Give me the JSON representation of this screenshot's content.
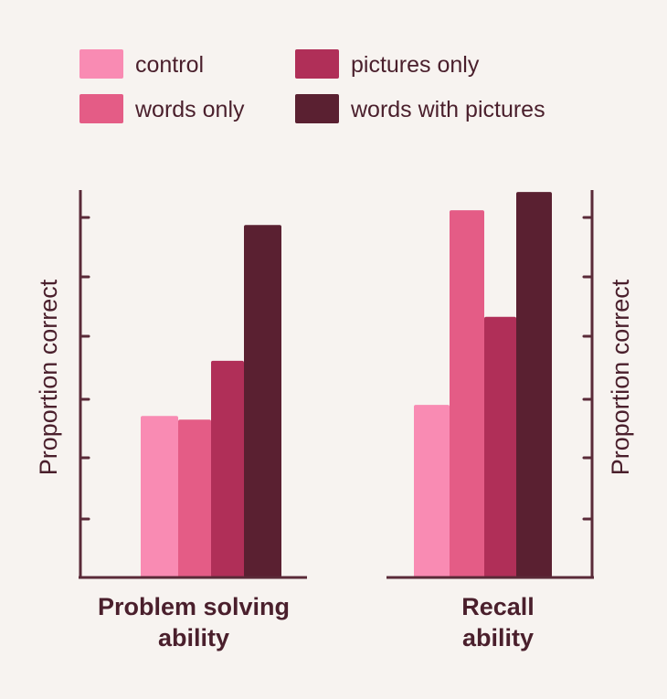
{
  "chart_data": {
    "type": "bar",
    "series": [
      {
        "name": "control",
        "color": "#f98bb3"
      },
      {
        "name": "words only",
        "color": "#e45c86"
      },
      {
        "name": "pictures only",
        "color": "#b02f58"
      },
      {
        "name": "words with pictures",
        "color": "#5a2031"
      }
    ],
    "panels": [
      {
        "xlabel": [
          "Problem solving",
          "ability"
        ],
        "ylabel": "Proportion correct",
        "axis_side": "left",
        "values": [
          0.44,
          0.43,
          0.59,
          0.96
        ]
      },
      {
        "xlabel": [
          "Recall",
          "ability"
        ],
        "ylabel": "Proportion correct",
        "axis_side": "right",
        "values": [
          0.47,
          1.0,
          0.71,
          1.05
        ]
      }
    ],
    "ylim": [
      0,
      1.1
    ],
    "ticks": 6,
    "grid": false,
    "legend_position": "top"
  }
}
